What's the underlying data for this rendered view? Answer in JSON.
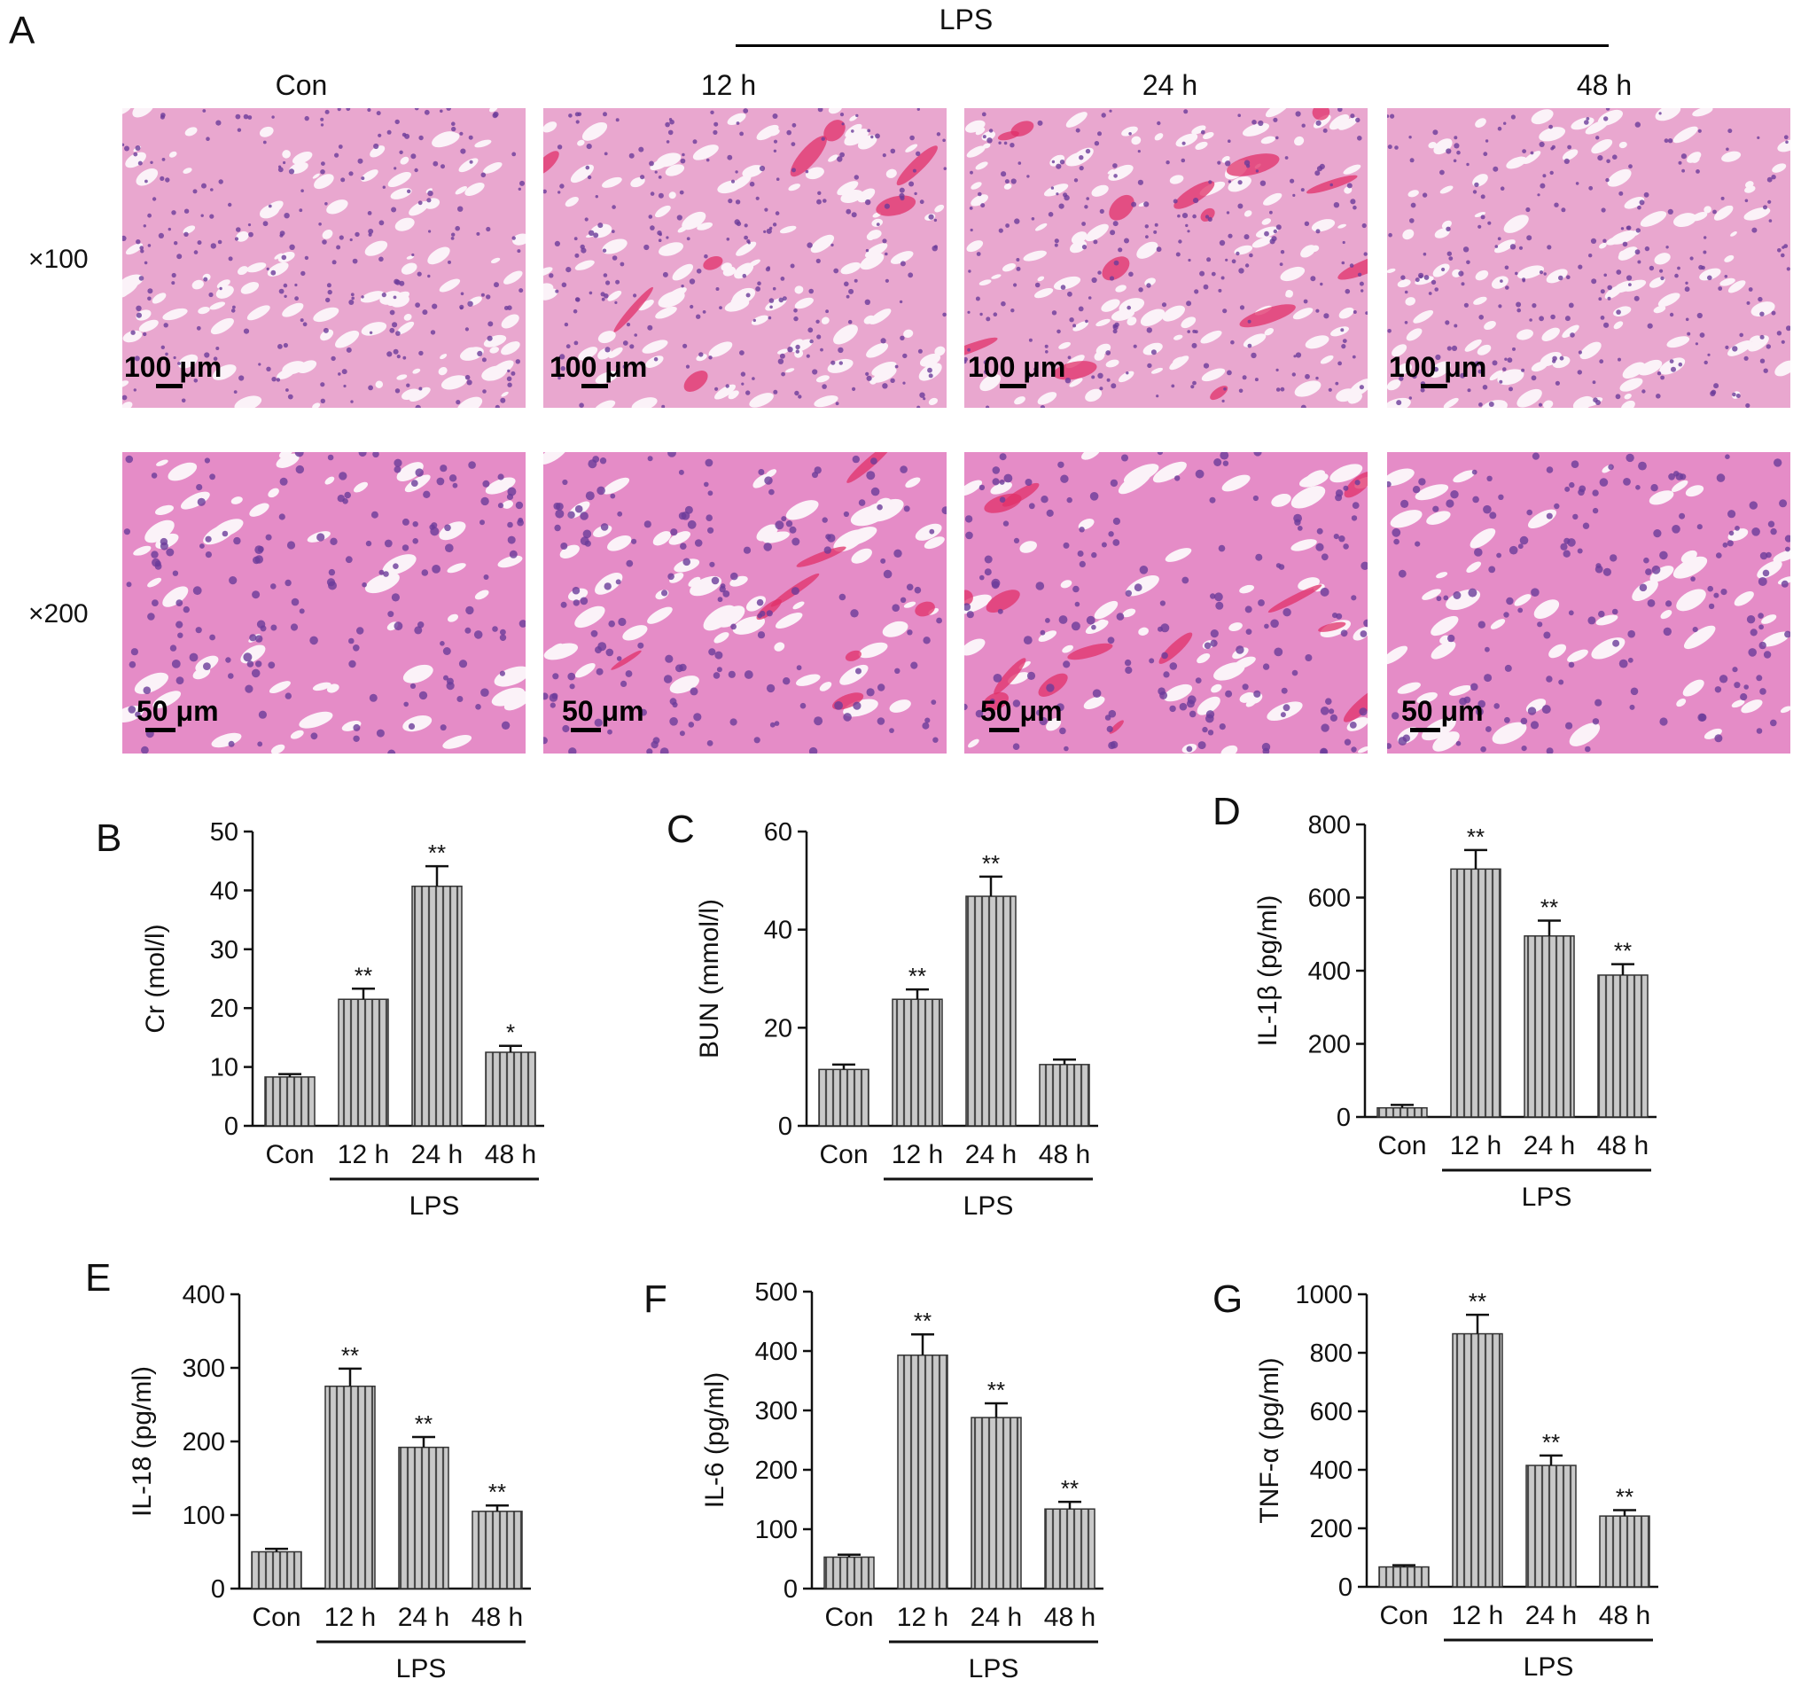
{
  "panel_a": {
    "letter": "A",
    "treatment_label": "LPS",
    "columns": [
      "Con",
      "12 h",
      "24 h",
      "48 h"
    ],
    "rows": [
      "×100",
      "×200"
    ],
    "scale_bars": [
      "100 μm",
      "50 μm"
    ]
  },
  "chart_data": [
    {
      "letter": "B",
      "type": "bar",
      "categories": [
        "Con",
        "12 h",
        "24 h",
        "48 h"
      ],
      "values": [
        8.3,
        21.5,
        40.7,
        12.5
      ],
      "errors": [
        0.5,
        1.8,
        3.4,
        1.1
      ],
      "significance": [
        "",
        "**",
        "**",
        "*"
      ],
      "ylabel": "Cr (mol/l)",
      "ylim": [
        0,
        50
      ],
      "yticks": [
        0,
        10,
        20,
        30,
        40,
        50
      ],
      "group_label": "LPS"
    },
    {
      "letter": "C",
      "type": "bar",
      "categories": [
        "Con",
        "12 h",
        "24 h",
        "48 h"
      ],
      "values": [
        11.5,
        25.8,
        46.8,
        12.5
      ],
      "errors": [
        1.0,
        2.0,
        4.0,
        1.0
      ],
      "significance": [
        "",
        "**",
        "**",
        ""
      ],
      "ylabel": "BUN (mmol/l)",
      "ylim": [
        0,
        60
      ],
      "yticks": [
        0,
        20,
        40,
        60
      ],
      "group_label": "LPS"
    },
    {
      "letter": "D",
      "type": "bar",
      "categories": [
        "Con",
        "12 h",
        "24 h",
        "48 h"
      ],
      "values": [
        25,
        678,
        495,
        388
      ],
      "errors": [
        8,
        52,
        42,
        30
      ],
      "significance": [
        "",
        "**",
        "**",
        "**"
      ],
      "ylabel": "IL-1β (pg/ml)",
      "ylim": [
        0,
        800
      ],
      "yticks": [
        0,
        200,
        400,
        600,
        800
      ],
      "group_label": "LPS"
    },
    {
      "letter": "E",
      "type": "bar",
      "categories": [
        "Con",
        "12 h",
        "24 h",
        "48 h"
      ],
      "values": [
        50,
        275,
        192,
        105
      ],
      "errors": [
        4,
        24,
        14,
        8
      ],
      "significance": [
        "",
        "**",
        "**",
        "**"
      ],
      "ylabel": "IL-18 (pg/ml)",
      "ylim": [
        0,
        400
      ],
      "yticks": [
        0,
        100,
        200,
        300,
        400
      ],
      "group_label": "LPS"
    },
    {
      "letter": "F",
      "type": "bar",
      "categories": [
        "Con",
        "12 h",
        "24 h",
        "48 h"
      ],
      "values": [
        53,
        393,
        288,
        134
      ],
      "errors": [
        4,
        35,
        24,
        12
      ],
      "significance": [
        "",
        "**",
        "**",
        "**"
      ],
      "ylabel": "IL-6 (pg/ml)",
      "ylim": [
        0,
        500
      ],
      "yticks": [
        0,
        100,
        200,
        300,
        400,
        500
      ],
      "group_label": "LPS"
    },
    {
      "letter": "G",
      "type": "bar",
      "categories": [
        "Con",
        "12 h",
        "24 h",
        "48 h"
      ],
      "values": [
        68,
        865,
        415,
        242
      ],
      "errors": [
        6,
        65,
        34,
        20
      ],
      "significance": [
        "",
        "**",
        "**",
        "**"
      ],
      "ylabel": "TNF-α (pg/ml)",
      "ylim": [
        0,
        1000
      ],
      "yticks": [
        0,
        200,
        400,
        600,
        800,
        1000
      ],
      "group_label": "LPS"
    }
  ]
}
